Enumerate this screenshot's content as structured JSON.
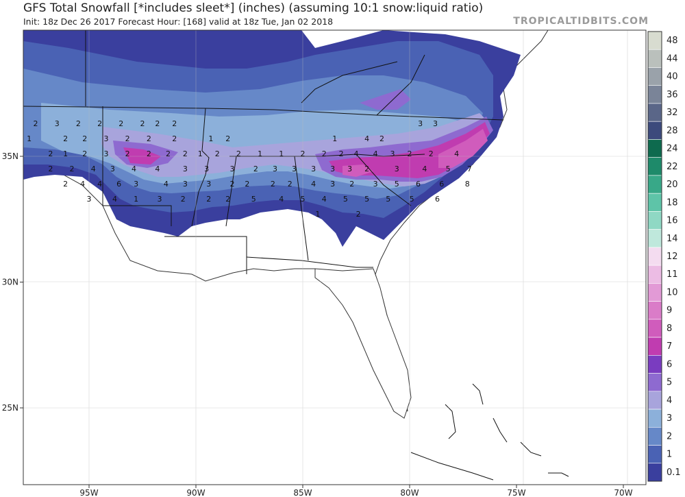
{
  "header": {
    "title": "GFS Total Snowfall [*includes sleet*] (inches) (assuming 10:1 snow:liquid ratio)",
    "subtitle": "Init: 18z Dec 26 2017   Forecast Hour: [168]   valid at 18z Tue, Jan 02 2018",
    "source": "TROPICALTIDBITS.COM"
  },
  "axes": {
    "lon_labels": [
      "95W",
      "90W",
      "85W",
      "80W",
      "75W",
      "70W"
    ],
    "lat_labels": [
      "35N",
      "30N",
      "25N"
    ]
  },
  "colorbar": {
    "labels": [
      "0.1",
      "1",
      "2",
      "3",
      "4",
      "5",
      "6",
      "7",
      "8",
      "9",
      "10",
      "11",
      "12",
      "14",
      "16",
      "18",
      "20",
      "22",
      "24",
      "28",
      "32",
      "36",
      "40",
      "44",
      "48"
    ],
    "colors": [
      "#3a3f9e",
      "#4a62b4",
      "#6688c8",
      "#8cb0da",
      "#a8a4dc",
      "#8e6ad0",
      "#7a3cc0",
      "#c03cb0",
      "#d05cbc",
      "#da7cc8",
      "#e29ad6",
      "#ecbce4",
      "#f4dcf0",
      "#bfe8dc",
      "#8fd8c4",
      "#5ec4a8",
      "#38a888",
      "#1e8a6a",
      "#0e6a4e",
      "#3c4a7c",
      "#5a6688",
      "#7a8498",
      "#9aa2aa",
      "#bac0bc",
      "#d8dcd0"
    ]
  },
  "chart_data": {
    "type": "heatmap",
    "title": "GFS Total Snowfall [*includes sleet*] (inches) (assuming 10:1 snow:liquid ratio)",
    "units": "inches",
    "valid": "18z Tue, Jan 02 2018",
    "init": "18z Dec 26 2017",
    "forecast_hour": 168,
    "lon_range": [
      -98,
      -68
    ],
    "lat_range": [
      22,
      38
    ],
    "point_labels": [
      {
        "lon": -97.5,
        "lat": 36.2,
        "value": "2"
      },
      {
        "lon": -96.5,
        "lat": 36.2,
        "value": "3"
      },
      {
        "lon": -95.5,
        "lat": 36.2,
        "value": "2"
      },
      {
        "lon": -94.5,
        "lat": 36.2,
        "value": "2"
      },
      {
        "lon": -93.5,
        "lat": 36.2,
        "value": "2"
      },
      {
        "lon": -92.5,
        "lat": 36.2,
        "value": "2"
      },
      {
        "lon": -91.8,
        "lat": 36.2,
        "value": "2"
      },
      {
        "lon": -91.0,
        "lat": 36.2,
        "value": "2"
      },
      {
        "lon": -97.8,
        "lat": 35.6,
        "value": "1"
      },
      {
        "lon": -96.1,
        "lat": 35.6,
        "value": "2"
      },
      {
        "lon": -95.2,
        "lat": 35.6,
        "value": "2"
      },
      {
        "lon": -94.2,
        "lat": 35.6,
        "value": "3"
      },
      {
        "lon": -93.2,
        "lat": 35.6,
        "value": "2"
      },
      {
        "lon": -92.2,
        "lat": 35.6,
        "value": "2"
      },
      {
        "lon": -91.0,
        "lat": 35.6,
        "value": "2"
      },
      {
        "lon": -89.3,
        "lat": 35.6,
        "value": "1"
      },
      {
        "lon": -88.5,
        "lat": 35.6,
        "value": "2"
      },
      {
        "lon": -83.5,
        "lat": 35.6,
        "value": "1"
      },
      {
        "lon": -82.0,
        "lat": 35.6,
        "value": "4"
      },
      {
        "lon": -81.3,
        "lat": 35.6,
        "value": "2"
      },
      {
        "lon": -79.5,
        "lat": 36.2,
        "value": "3"
      },
      {
        "lon": -78.8,
        "lat": 36.2,
        "value": "3"
      },
      {
        "lon": -96.8,
        "lat": 35.0,
        "value": "2"
      },
      {
        "lon": -96.1,
        "lat": 35.0,
        "value": "1"
      },
      {
        "lon": -95.2,
        "lat": 35.0,
        "value": "2"
      },
      {
        "lon": -94.2,
        "lat": 35.0,
        "value": "3"
      },
      {
        "lon": -93.2,
        "lat": 35.0,
        "value": "2"
      },
      {
        "lon": -92.2,
        "lat": 35.0,
        "value": "2"
      },
      {
        "lon": -91.3,
        "lat": 35.0,
        "value": "2"
      },
      {
        "lon": -90.5,
        "lat": 35.0,
        "value": "2"
      },
      {
        "lon": -89.8,
        "lat": 35.0,
        "value": "1"
      },
      {
        "lon": -89.0,
        "lat": 35.0,
        "value": "2"
      },
      {
        "lon": -88.0,
        "lat": 35.0,
        "value": "2"
      },
      {
        "lon": -87.0,
        "lat": 35.0,
        "value": "1"
      },
      {
        "lon": -86.0,
        "lat": 35.0,
        "value": "1"
      },
      {
        "lon": -85.0,
        "lat": 35.0,
        "value": "2"
      },
      {
        "lon": -84.0,
        "lat": 35.0,
        "value": "2"
      },
      {
        "lon": -83.2,
        "lat": 35.0,
        "value": "2"
      },
      {
        "lon": -82.5,
        "lat": 35.0,
        "value": "4"
      },
      {
        "lon": -81.6,
        "lat": 35.0,
        "value": "4"
      },
      {
        "lon": -80.8,
        "lat": 35.0,
        "value": "3"
      },
      {
        "lon": -80.0,
        "lat": 35.0,
        "value": "2"
      },
      {
        "lon": -79.0,
        "lat": 35.0,
        "value": "2"
      },
      {
        "lon": -77.8,
        "lat": 35.0,
        "value": "4"
      },
      {
        "lon": -96.8,
        "lat": 34.4,
        "value": "2"
      },
      {
        "lon": -95.8,
        "lat": 34.4,
        "value": "2"
      },
      {
        "lon": -94.8,
        "lat": 34.4,
        "value": "4"
      },
      {
        "lon": -93.9,
        "lat": 34.4,
        "value": "3"
      },
      {
        "lon": -92.9,
        "lat": 34.4,
        "value": "4"
      },
      {
        "lon": -91.8,
        "lat": 34.4,
        "value": "4"
      },
      {
        "lon": -90.5,
        "lat": 34.4,
        "value": "3"
      },
      {
        "lon": -89.5,
        "lat": 34.4,
        "value": "3"
      },
      {
        "lon": -88.3,
        "lat": 34.4,
        "value": "3"
      },
      {
        "lon": -87.2,
        "lat": 34.4,
        "value": "2"
      },
      {
        "lon": -86.3,
        "lat": 34.4,
        "value": "3"
      },
      {
        "lon": -85.4,
        "lat": 34.4,
        "value": "3"
      },
      {
        "lon": -84.5,
        "lat": 34.4,
        "value": "3"
      },
      {
        "lon": -83.6,
        "lat": 34.4,
        "value": "3"
      },
      {
        "lon": -82.8,
        "lat": 34.4,
        "value": "3"
      },
      {
        "lon": -82.0,
        "lat": 34.4,
        "value": "2"
      },
      {
        "lon": -80.6,
        "lat": 34.4,
        "value": "3"
      },
      {
        "lon": -79.3,
        "lat": 34.4,
        "value": "4"
      },
      {
        "lon": -78.2,
        "lat": 34.4,
        "value": "5"
      },
      {
        "lon": -77.2,
        "lat": 34.4,
        "value": "7"
      },
      {
        "lon": -96.1,
        "lat": 33.8,
        "value": "2"
      },
      {
        "lon": -95.3,
        "lat": 33.8,
        "value": "4"
      },
      {
        "lon": -94.5,
        "lat": 33.8,
        "value": "4"
      },
      {
        "lon": -93.6,
        "lat": 33.8,
        "value": "6"
      },
      {
        "lon": -92.8,
        "lat": 33.8,
        "value": "3"
      },
      {
        "lon": -91.4,
        "lat": 33.8,
        "value": "4"
      },
      {
        "lon": -90.5,
        "lat": 33.8,
        "value": "3"
      },
      {
        "lon": -89.4,
        "lat": 33.8,
        "value": "3"
      },
      {
        "lon": -88.3,
        "lat": 33.8,
        "value": "2"
      },
      {
        "lon": -87.6,
        "lat": 33.8,
        "value": "2"
      },
      {
        "lon": -86.4,
        "lat": 33.8,
        "value": "2"
      },
      {
        "lon": -85.6,
        "lat": 33.8,
        "value": "2"
      },
      {
        "lon": -84.5,
        "lat": 33.8,
        "value": "4"
      },
      {
        "lon": -83.6,
        "lat": 33.8,
        "value": "3"
      },
      {
        "lon": -82.7,
        "lat": 33.8,
        "value": "2"
      },
      {
        "lon": -81.6,
        "lat": 33.8,
        "value": "3"
      },
      {
        "lon": -80.6,
        "lat": 33.8,
        "value": "5"
      },
      {
        "lon": -79.6,
        "lat": 33.8,
        "value": "6"
      },
      {
        "lon": -78.5,
        "lat": 33.8,
        "value": "6"
      },
      {
        "lon": -77.3,
        "lat": 33.8,
        "value": "8"
      },
      {
        "lon": -95.0,
        "lat": 33.2,
        "value": "3"
      },
      {
        "lon": -93.8,
        "lat": 33.2,
        "value": "4"
      },
      {
        "lon": -92.8,
        "lat": 33.2,
        "value": "1"
      },
      {
        "lon": -91.7,
        "lat": 33.2,
        "value": "3"
      },
      {
        "lon": -90.6,
        "lat": 33.2,
        "value": "2"
      },
      {
        "lon": -89.4,
        "lat": 33.2,
        "value": "2"
      },
      {
        "lon": -88.5,
        "lat": 33.2,
        "value": "2"
      },
      {
        "lon": -87.3,
        "lat": 33.2,
        "value": "5"
      },
      {
        "lon": -86.0,
        "lat": 33.2,
        "value": "4"
      },
      {
        "lon": -85.0,
        "lat": 33.2,
        "value": "5"
      },
      {
        "lon": -84.0,
        "lat": 33.2,
        "value": "4"
      },
      {
        "lon": -83.0,
        "lat": 33.2,
        "value": "5"
      },
      {
        "lon": -82.0,
        "lat": 33.2,
        "value": "5"
      },
      {
        "lon": -81.0,
        "lat": 33.2,
        "value": "5"
      },
      {
        "lon": -79.9,
        "lat": 33.2,
        "value": "5"
      },
      {
        "lon": -78.7,
        "lat": 33.2,
        "value": "6"
      },
      {
        "lon": -84.3,
        "lat": 32.6,
        "value": "1"
      },
      {
        "lon": -82.4,
        "lat": 32.6,
        "value": "2"
      }
    ]
  }
}
